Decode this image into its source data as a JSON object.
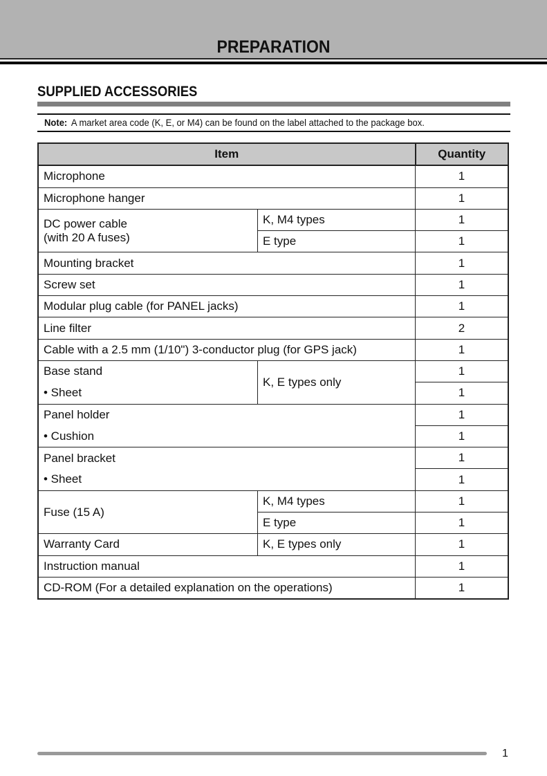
{
  "header": {
    "title": "PREPARATION"
  },
  "section": {
    "title": "SUPPLIED ACCESSORIES"
  },
  "note": {
    "label": "Note:",
    "text": "A market area code (K, E, or M4) can be found on the label attached to the package box."
  },
  "table": {
    "headers": {
      "item": "Item",
      "quantity": "Quantity"
    },
    "rows": [
      {
        "item": "Microphone",
        "qty": "1"
      },
      {
        "item": "Microphone hanger",
        "qty": "1"
      },
      {
        "item": "DC power cable",
        "item2": "(with 20 A fuses)",
        "type": "K, M4 types",
        "qty": "1"
      },
      {
        "type": "E type",
        "qty": "1"
      },
      {
        "item": "Mounting bracket",
        "qty": "1"
      },
      {
        "item": "Screw set",
        "qty": "1"
      },
      {
        "item": "Modular plug cable (for PANEL jacks)",
        "qty": "1"
      },
      {
        "item": "Line filter",
        "qty": "2"
      },
      {
        "item": "Cable with a 2.5 mm (1/10\") 3-conductor plug (for GPS jack)",
        "qty": "1"
      },
      {
        "item": "Base stand",
        "type": "K, E types only",
        "qty": "1"
      },
      {
        "item": "• Sheet",
        "qty": "1"
      },
      {
        "item": "Panel holder",
        "qty": "1"
      },
      {
        "item": "• Cushion",
        "qty": "1"
      },
      {
        "item": "Panel bracket",
        "qty": "1"
      },
      {
        "item": "• Sheet",
        "qty": "1"
      },
      {
        "item": "Fuse (15 A)",
        "type": "K, M4 types",
        "qty": "1"
      },
      {
        "type": "E type",
        "qty": "1"
      },
      {
        "item": "Warranty Card",
        "type": "K, E types only",
        "qty": "1"
      },
      {
        "item": "Instruction manual",
        "qty": "1"
      },
      {
        "item": "CD-ROM (For a detailed explanation on the operations)",
        "qty": "1"
      }
    ]
  },
  "footer": {
    "page_number": "1"
  }
}
